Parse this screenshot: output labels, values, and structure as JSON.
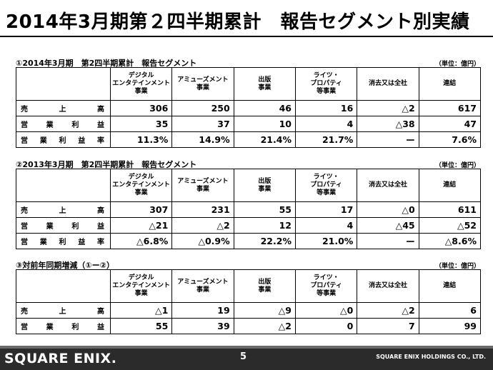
{
  "page": {
    "title": "2014年3月期第２四半期累計　報告セグメント別実績",
    "logo": "SQUARE ENIX.",
    "page_number": "5",
    "company": "SQUARE ENIX HOLDINGS CO., LTD."
  },
  "columns": [
    "デジタル\nエンタテインメント\n事業",
    "アミューズメント\n事業",
    "出版\n事業",
    "ライツ・\nプロパティ\n等事業",
    "消去又は全社",
    "連結"
  ],
  "sections": [
    {
      "title": "①2014年3月期　第2四半期累計　報告セグメント",
      "unit": "（単位：億円）",
      "rows": [
        {
          "label": [
            "売",
            "上",
            "高"
          ],
          "values": [
            "306",
            "250",
            "46",
            "16",
            "△2",
            "617"
          ]
        },
        {
          "label": [
            "営",
            "業",
            "利",
            "益"
          ],
          "values": [
            "35",
            "37",
            "10",
            "4",
            "△38",
            "47"
          ]
        },
        {
          "label": [
            "営",
            "業",
            "利",
            "益",
            "率"
          ],
          "values": [
            "11.3%",
            "14.9%",
            "21.4%",
            "21.7%",
            "ー",
            "7.6%"
          ]
        }
      ]
    },
    {
      "title": "②2013年3月期　第2四半期累計　報告セグメント",
      "unit": "（単位：億円）",
      "rows": [
        {
          "label": [
            "売",
            "上",
            "高"
          ],
          "values": [
            "307",
            "231",
            "55",
            "17",
            "△0",
            "611"
          ]
        },
        {
          "label": [
            "営",
            "業",
            "利",
            "益"
          ],
          "values": [
            "△21",
            "△2",
            "12",
            "4",
            "△45",
            "△52"
          ]
        },
        {
          "label": [
            "営",
            "業",
            "利",
            "益",
            "率"
          ],
          "values": [
            "△6.8%",
            "△0.9%",
            "22.2%",
            "21.0%",
            "ー",
            "△8.6%"
          ]
        }
      ]
    },
    {
      "title": "③対前年同期増減（①ー②）",
      "unit": "（単位：億円）",
      "rows": [
        {
          "label": [
            "売",
            "上",
            "高"
          ],
          "values": [
            "△1",
            "19",
            "△9",
            "△0",
            "△2",
            "6"
          ]
        },
        {
          "label": [
            "営",
            "業",
            "利",
            "益"
          ],
          "values": [
            "55",
            "39",
            "△2",
            "0",
            "7",
            "99"
          ]
        }
      ]
    }
  ]
}
